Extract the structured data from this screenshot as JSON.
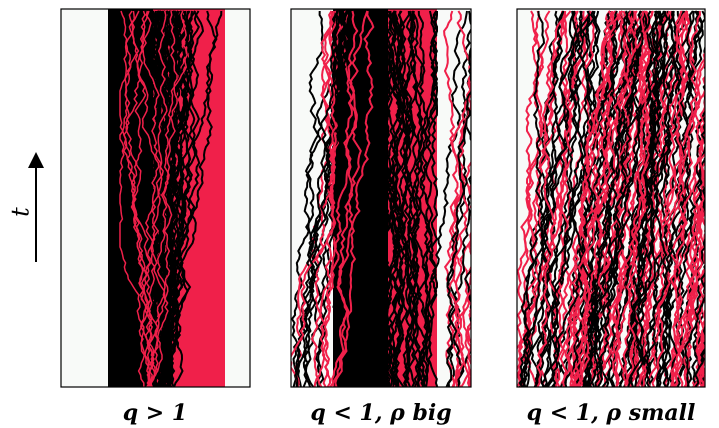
{
  "axis_label": "t",
  "captions": [
    "q > 1",
    "q < 1, ρ big",
    "q < 1, ρ small"
  ]
}
